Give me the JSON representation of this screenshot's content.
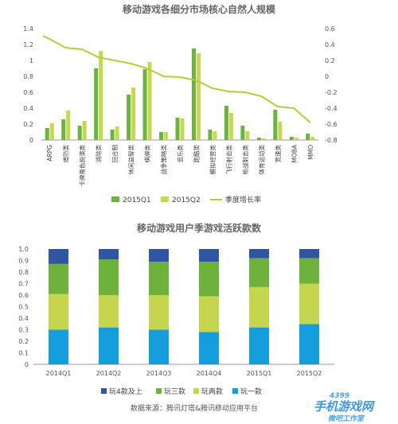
{
  "colors": {
    "q1": "#6bb33f",
    "q2": "#c5d84f",
    "growth": "#b4cc3c",
    "top4": "#2f55a4",
    "three": "#6fb13d",
    "two": "#c4d54e",
    "one": "#159edd",
    "axis": "#999999"
  },
  "chart_data": [
    {
      "type": "bar",
      "title": "移动游戏各细分市场核心自然人规模",
      "categories": [
        "ARPG",
        "塔防类",
        "卡牌角色扮演类",
        "消除类",
        "回合制",
        "休闲益智类",
        "棋牌类",
        "战争策略类",
        "音乐类",
        "跑酷类",
        "模拟经营类",
        "飞行射击类",
        "枪战射击类",
        "体育运动类",
        "竞速类",
        "MOBA",
        "MMO"
      ],
      "ylim": [
        0,
        1.4
      ],
      "y_ticks": [
        "0",
        "0.2",
        "0.4",
        "0.6",
        "0.8",
        "1",
        "1.2",
        "1.4"
      ],
      "y2lim": [
        -0.8,
        0.6
      ],
      "y2_ticks": [
        "-0.8",
        "-0.6",
        "-0.4",
        "-0.2",
        "0",
        "0.2",
        "0.4",
        "0.6"
      ],
      "series": [
        {
          "name": "2015Q1",
          "values": [
            0.15,
            0.26,
            0.18,
            0.9,
            0.13,
            0.57,
            0.89,
            0.1,
            0.28,
            1.15,
            0.13,
            0.43,
            0.18,
            0.03,
            0.38,
            0.04,
            0.08
          ]
        },
        {
          "name": "2015Q2",
          "values": [
            0.21,
            0.37,
            0.24,
            1.12,
            0.17,
            0.66,
            0.98,
            0.1,
            0.27,
            1.09,
            0.11,
            0.34,
            0.11,
            0.02,
            0.23,
            0.03,
            0.04
          ]
        },
        {
          "name": "季度增长率",
          "axis": "right",
          "type": "line",
          "values": [
            0.47,
            0.36,
            0.34,
            0.24,
            0.2,
            0.16,
            0.1,
            0.0,
            -0.01,
            -0.05,
            -0.15,
            -0.19,
            -0.2,
            -0.25,
            -0.38,
            -0.4,
            -0.58
          ]
        }
      ],
      "legend": [
        "2015Q1",
        "2015Q2",
        "季度增长率"
      ],
      "legend_position": "bottom",
      "grid": false
    },
    {
      "type": "bar",
      "stacked": true,
      "title": "移动游戏用户季游戏活跃款数",
      "categories": [
        "2014Q1",
        "2014Q2",
        "2014Q3",
        "2014Q4",
        "2015Q1",
        "2015Q2"
      ],
      "ylim": [
        0,
        1.0
      ],
      "y_ticks": [
        "0",
        "0.1",
        "0.2",
        "0.3",
        "0.4",
        "0.5",
        "0.6",
        "0.7",
        "0.8",
        "0.9",
        "1.0"
      ],
      "series": [
        {
          "name": "玩一款",
          "values": [
            0.3,
            0.32,
            0.3,
            0.28,
            0.32,
            0.35
          ]
        },
        {
          "name": "玩两款",
          "values": [
            0.31,
            0.28,
            0.3,
            0.31,
            0.35,
            0.35
          ]
        },
        {
          "name": "玩三款",
          "values": [
            0.26,
            0.31,
            0.29,
            0.3,
            0.25,
            0.22
          ]
        },
        {
          "name": "玩4款及上",
          "values": [
            0.13,
            0.09,
            0.11,
            0.11,
            0.08,
            0.08
          ]
        }
      ],
      "legend": [
        "玩4款及上",
        "玩三款",
        "玩两款",
        "玩一款"
      ],
      "legend_position": "bottom",
      "grid": false
    }
  ],
  "source_text": "数据来源：腾讯灯塔&腾讯移动应用平台",
  "watermark": {
    "top": "4399",
    "middle": "手机游戏网",
    "bottom": "微吧工作室"
  }
}
